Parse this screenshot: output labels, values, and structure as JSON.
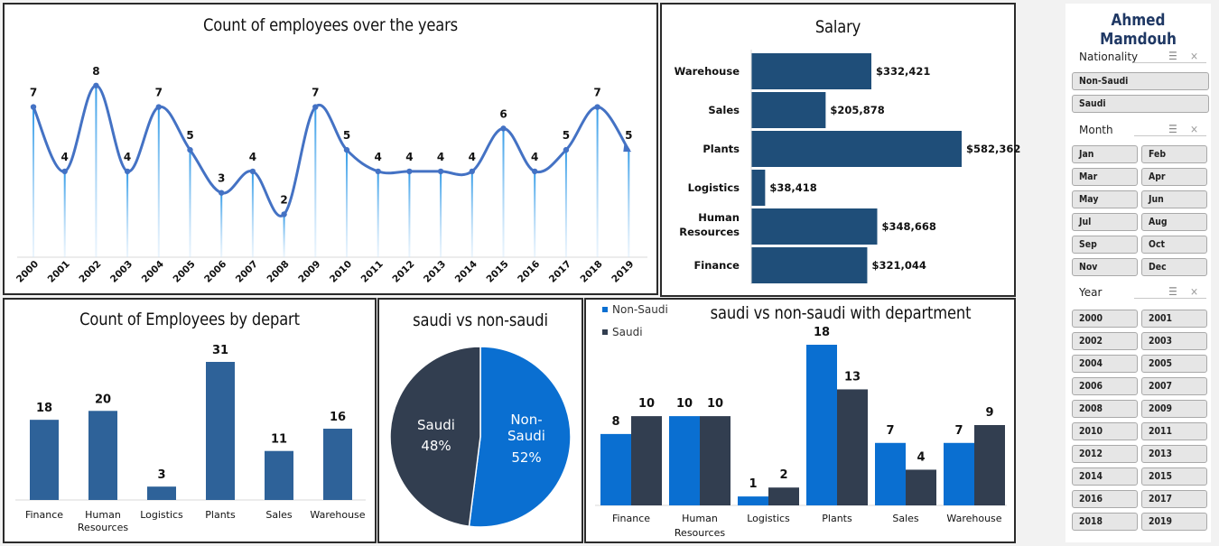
{
  "chart_data": [
    {
      "type": "line",
      "title": "Count of employees over the years",
      "categories": [
        "2000",
        "2001",
        "2002",
        "2003",
        "2004",
        "2005",
        "2006",
        "2007",
        "2008",
        "2009",
        "2010",
        "2011",
        "2012",
        "2013",
        "2014",
        "2015",
        "2016",
        "2017",
        "2018",
        "2019"
      ],
      "values": [
        7,
        4,
        8,
        4,
        7,
        5,
        3,
        4,
        2,
        7,
        5,
        4,
        4,
        4,
        4,
        6,
        4,
        5,
        7,
        5
      ],
      "ylim": [
        0,
        9
      ],
      "color": "#4472c4"
    },
    {
      "type": "bar",
      "orientation": "horizontal",
      "title": "Salary",
      "categories": [
        "Warehouse",
        "Sales",
        "Plants",
        "Logistics",
        "Human Resources",
        "Finance"
      ],
      "values": [
        332421,
        205878,
        582362,
        38418,
        348668,
        321044
      ],
      "value_labels": [
        "$332,421",
        "$205,878",
        "$582,362",
        "$38,418",
        "$348,668",
        "$321,044"
      ],
      "xlim": [
        0,
        600000
      ],
      "color": "#1f4e79"
    },
    {
      "type": "bar",
      "title": "Count of Employees by depart",
      "categories": [
        "Finance",
        "Human Resources",
        "Logistics",
        "Plants",
        "Sales",
        "Warehouse"
      ],
      "values": [
        18,
        20,
        3,
        31,
        11,
        16
      ],
      "ylim": [
        0,
        35
      ],
      "color": "#2e6299"
    },
    {
      "type": "pie",
      "title": "saudi vs non-saudi",
      "categories": [
        "Non-Saudi",
        "Saudi"
      ],
      "values": [
        52,
        48
      ],
      "value_labels": [
        "52%",
        "48%"
      ],
      "colors": [
        "#0a6fd1",
        "#323e50"
      ]
    },
    {
      "type": "bar",
      "title": "saudi vs non-saudi with department",
      "categories": [
        "Finance",
        "Human Resources",
        "Logistics",
        "Plants",
        "Sales",
        "Warehouse"
      ],
      "series": [
        {
          "name": "Non-Saudi",
          "values": [
            8,
            10,
            1,
            18,
            7,
            7
          ],
          "color": "#0a6fd1"
        },
        {
          "name": "Saudi",
          "values": [
            10,
            10,
            2,
            13,
            4,
            9
          ],
          "color": "#323e50"
        }
      ],
      "ylim": [
        0,
        18
      ],
      "legend": "top-left"
    }
  ],
  "slicer": {
    "title": "Ahmed Mamdouh",
    "nationality": {
      "label": "Nationality",
      "items": [
        "Non-Saudi",
        "Saudi"
      ]
    },
    "month": {
      "label": "Month",
      "items": [
        "Jan",
        "Feb",
        "Mar",
        "Apr",
        "May",
        "Jun",
        "Jul",
        "Aug",
        "Sep",
        "Oct",
        "Nov",
        "Dec"
      ]
    },
    "year": {
      "label": "Year",
      "items": [
        "2000",
        "2001",
        "2002",
        "2003",
        "2004",
        "2005",
        "2006",
        "2007",
        "2008",
        "2009",
        "2010",
        "2011",
        "2012",
        "2013",
        "2014",
        "2015",
        "2016",
        "2017",
        "2018",
        "2019"
      ]
    },
    "icons": [
      "multi-select-icon",
      "clear-filter-icon"
    ]
  }
}
